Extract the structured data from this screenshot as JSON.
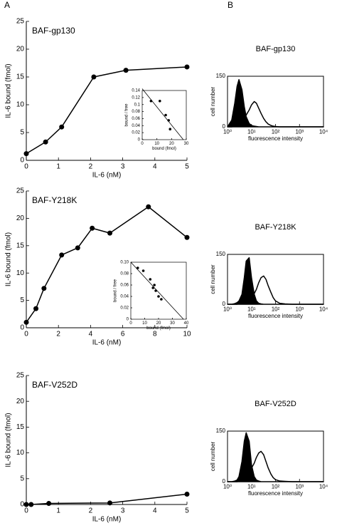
{
  "panel_labels": [
    "A",
    "B"
  ],
  "chart_data": [
    {
      "type": "line",
      "title": "BAF-gp130",
      "x_label": "IL-6 (nM)",
      "y_label": "IL-6 bound (fmol)",
      "x": [
        0,
        0.6,
        1.1,
        2.1,
        3.1,
        5
      ],
      "series": [
        {
          "color": "#000000",
          "values": [
            1.2,
            3.3,
            6,
            15,
            16.2,
            16.8
          ]
        }
      ],
      "markers": true,
      "xlim": [
        0,
        5
      ],
      "xticks": [
        0,
        1,
        2,
        3,
        4,
        5
      ],
      "ylim": [
        0,
        25
      ],
      "yticks": [
        0,
        5,
        10,
        15,
        20,
        25
      ]
    },
    {
      "type": "scatter",
      "x_label": "bound (fmol)",
      "y_label": "bound / free",
      "series": [
        {
          "color": "#000000",
          "mode": "points",
          "x": [
            6,
            12,
            16,
            18,
            19
          ],
          "values": [
            0.11,
            0.11,
            0.07,
            0.055,
            0.03
          ]
        },
        {
          "color": "#000000",
          "mode": "line",
          "x": [
            0,
            28
          ],
          "values": [
            0.145,
            0
          ]
        }
      ],
      "xlim": [
        0,
        30
      ],
      "xticks": [
        0,
        10,
        20,
        30
      ],
      "ylim": [
        0,
        0.14
      ],
      "yticks": [
        0,
        0.02,
        0.04,
        0.06,
        0.08,
        0.1,
        0.12,
        0.14
      ]
    },
    {
      "type": "line",
      "title": "BAF-Y218K",
      "x_label": "IL-6 (nM)",
      "y_label": "IL-6 bound (fmol)",
      "x": [
        0,
        0.6,
        1.1,
        2.2,
        3.2,
        4.1,
        5.2,
        7.6,
        10
      ],
      "series": [
        {
          "color": "#000000",
          "values": [
            1,
            3.5,
            7.2,
            13.3,
            14.6,
            18.2,
            17.3,
            22.1,
            16.5
          ]
        }
      ],
      "markers": true,
      "xlim": [
        0,
        10
      ],
      "xticks": [
        0,
        2,
        4,
        6,
        8,
        10
      ],
      "ylim": [
        0,
        25
      ],
      "yticks": [
        0,
        5,
        10,
        15,
        20,
        25
      ]
    },
    {
      "type": "scatter",
      "x_label": "bound (fmol)",
      "y_label": "bound / free",
      "series": [
        {
          "color": "#000000",
          "mode": "points",
          "x": [
            5,
            9,
            14,
            16,
            18,
            20,
            22,
            17
          ],
          "values": [
            0.09,
            0.085,
            0.07,
            0.055,
            0.05,
            0.04,
            0.035,
            0.06
          ]
        },
        {
          "color": "#000000",
          "mode": "line",
          "x": [
            0,
            38
          ],
          "values": [
            0.1,
            0
          ]
        }
      ],
      "xlim": [
        0,
        40
      ],
      "xticks": [
        0,
        10,
        20,
        30,
        40
      ],
      "ylim": [
        0,
        0.1
      ],
      "yticks": [
        0,
        0.02,
        0.04,
        0.06,
        0.08,
        {
          "value": 0.1,
          "label": "0.10"
        }
      ]
    },
    {
      "type": "line",
      "title": "BAF-V252D",
      "x_label": "IL-6 (nM)",
      "y_label": "IL-6 bound (fmol)",
      "x": [
        0,
        0.15,
        0.7,
        2.6,
        5
      ],
      "series": [
        {
          "color": "#000000",
          "values": [
            0,
            0,
            0.2,
            0.3,
            2
          ]
        }
      ],
      "markers": true,
      "xlim": [
        0,
        5
      ],
      "xticks": [
        0,
        1,
        2,
        3,
        4,
        5
      ],
      "ylim": [
        0,
        25
      ],
      "yticks": [
        0,
        5,
        10,
        15,
        20,
        25
      ]
    },
    {
      "type": "histogram",
      "title": "BAF-gp130",
      "x_label": "fluorescence intensity",
      "y_label": "cell number",
      "log_x": true,
      "x": [
        1,
        1.5,
        2,
        2.5,
        3,
        4,
        5,
        6,
        8,
        10,
        13,
        16,
        20,
        25,
        32,
        40,
        50,
        65,
        80,
        100,
        150,
        250,
        500,
        1000,
        10000
      ],
      "series": [
        {
          "color": "#000000",
          "filled": true,
          "values": [
            0,
            20,
            70,
            120,
            140,
            110,
            60,
            30,
            10,
            4,
            2,
            1,
            0,
            0,
            0,
            0,
            0,
            0,
            0,
            0,
            0,
            0,
            0,
            0,
            0
          ]
        },
        {
          "color": "#000000",
          "values": [
            0,
            0,
            2,
            4,
            8,
            15,
            25,
            35,
            50,
            65,
            75,
            70,
            55,
            40,
            25,
            15,
            8,
            4,
            2,
            1,
            0,
            0,
            0,
            0,
            0
          ]
        }
      ],
      "xlim": [
        1,
        10000
      ],
      "xticks": [
        {
          "value": 1,
          "label": "10⁰"
        },
        {
          "value": 10,
          "label": "10¹"
        },
        {
          "value": 100,
          "label": "10²"
        },
        {
          "value": 1000,
          "label": "10³"
        },
        {
          "value": 10000,
          "label": "10⁴"
        }
      ],
      "ylim": [
        0,
        150
      ],
      "yticks": [
        0,
        150
      ]
    },
    {
      "type": "histogram",
      "title": "BAF-Y218K",
      "x_label": "fluorescence intensity",
      "y_label": "cell number",
      "log_x": true,
      "x": [
        1,
        1.5,
        2,
        2.5,
        3,
        4,
        5,
        6,
        8,
        10,
        13,
        16,
        20,
        25,
        32,
        40,
        50,
        65,
        80,
        100,
        150,
        250,
        500,
        1000,
        10000
      ],
      "series": [
        {
          "color": "#000000",
          "filled": true,
          "values": [
            0,
            0,
            2,
            5,
            10,
            30,
            80,
            130,
            140,
            80,
            30,
            10,
            3,
            1,
            0,
            0,
            0,
            0,
            0,
            0,
            0,
            0,
            0,
            0,
            0
          ]
        },
        {
          "color": "#000000",
          "values": [
            0,
            0,
            0,
            0,
            2,
            4,
            6,
            10,
            15,
            22,
            32,
            45,
            65,
            80,
            85,
            75,
            55,
            35,
            20,
            10,
            3,
            1,
            0,
            0,
            0
          ]
        }
      ],
      "xlim": [
        1,
        10000
      ],
      "xticks": [
        {
          "value": 1,
          "label": "10⁰"
        },
        {
          "value": 10,
          "label": "10¹"
        },
        {
          "value": 100,
          "label": "10²"
        },
        {
          "value": 1000,
          "label": "10³"
        },
        {
          "value": 10000,
          "label": "10⁴"
        }
      ],
      "ylim": [
        0,
        150
      ],
      "yticks": [
        0,
        150
      ]
    },
    {
      "type": "histogram",
      "title": "BAF-V252D",
      "x_label": "fluorescence intensity",
      "y_label": "cell number",
      "log_x": true,
      "x": [
        1,
        1.5,
        2,
        2.5,
        3,
        4,
        5,
        6,
        8,
        10,
        13,
        16,
        20,
        25,
        32,
        40,
        50,
        65,
        80,
        100,
        150,
        250,
        500,
        1000,
        10000
      ],
      "series": [
        {
          "color": "#000000",
          "filled": true,
          "values": [
            0,
            0,
            2,
            5,
            15,
            60,
            120,
            145,
            120,
            50,
            15,
            5,
            2,
            0,
            0,
            0,
            0,
            0,
            0,
            0,
            0,
            0,
            0,
            0,
            0
          ]
        },
        {
          "color": "#000000",
          "values": [
            0,
            0,
            0,
            0,
            2,
            5,
            10,
            18,
            28,
            40,
            55,
            72,
            85,
            90,
            80,
            60,
            40,
            22,
            12,
            6,
            2,
            1,
            0,
            0,
            0
          ]
        }
      ],
      "xlim": [
        1,
        10000
      ],
      "xticks": [
        {
          "value": 1,
          "label": "10⁰"
        },
        {
          "value": 10,
          "label": "10¹"
        },
        {
          "value": 100,
          "label": "10²"
        },
        {
          "value": 1000,
          "label": "10³"
        },
        {
          "value": 10000,
          "label": "10⁴"
        }
      ],
      "ylim": [
        0,
        150
      ],
      "yticks": [
        0,
        150
      ]
    }
  ]
}
